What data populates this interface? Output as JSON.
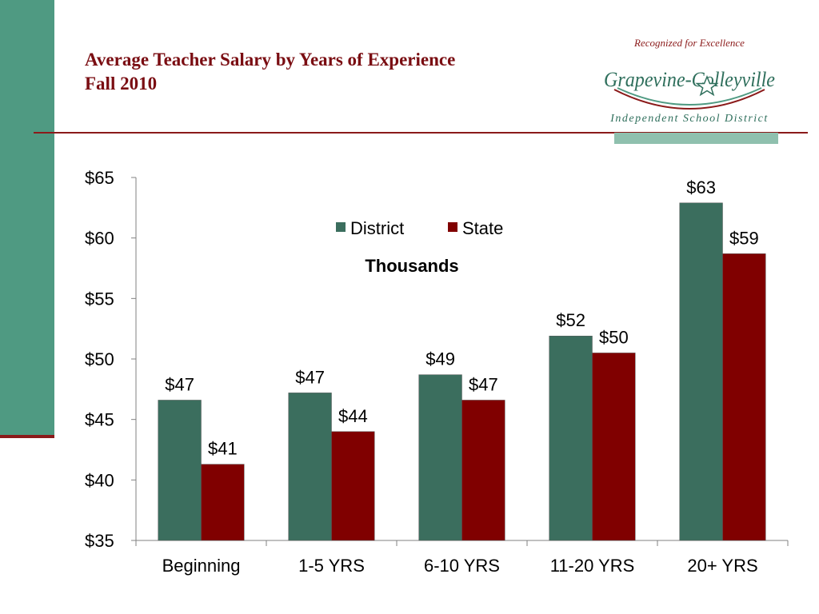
{
  "slide": {
    "title_line1": "Average Teacher Salary by Years of Experience",
    "title_line2": "Fall 2010"
  },
  "logo": {
    "tagline": "Recognized for Excellence",
    "name": "Grapevine-Colleyville",
    "subtitle": "Independent School District",
    "icon": "star-icon"
  },
  "colors": {
    "sidebar": "#4f9a82",
    "accent_line": "#8b1a1a",
    "district": "#3b6e5e",
    "state": "#800000",
    "title": "#7a0d12"
  },
  "chart_data": {
    "type": "bar",
    "categories": [
      "Beginning",
      "1-5 YRS",
      "6-10 YRS",
      "11-20 YRS",
      "20+ YRS"
    ],
    "series": [
      {
        "name": "District",
        "values": [
          46.6,
          47.2,
          48.7,
          51.9,
          62.9
        ],
        "labels": [
          "$47",
          "$47",
          "$49",
          "$52",
          "$63"
        ],
        "color": "#3b6e5e"
      },
      {
        "name": "State",
        "values": [
          41.3,
          44.0,
          46.6,
          50.5,
          58.7
        ],
        "labels": [
          "$41",
          "$44",
          "$47",
          "$50",
          "$59"
        ],
        "color": "#800000"
      }
    ],
    "ylim": [
      35,
      65
    ],
    "yticks": [
      35,
      40,
      45,
      50,
      55,
      60,
      65
    ],
    "ytick_labels": [
      "$35",
      "$40",
      "$45",
      "$50",
      "$55",
      "$60",
      "$65"
    ],
    "units_label": "Thousands",
    "legend_position": "top-center",
    "grid": false
  }
}
